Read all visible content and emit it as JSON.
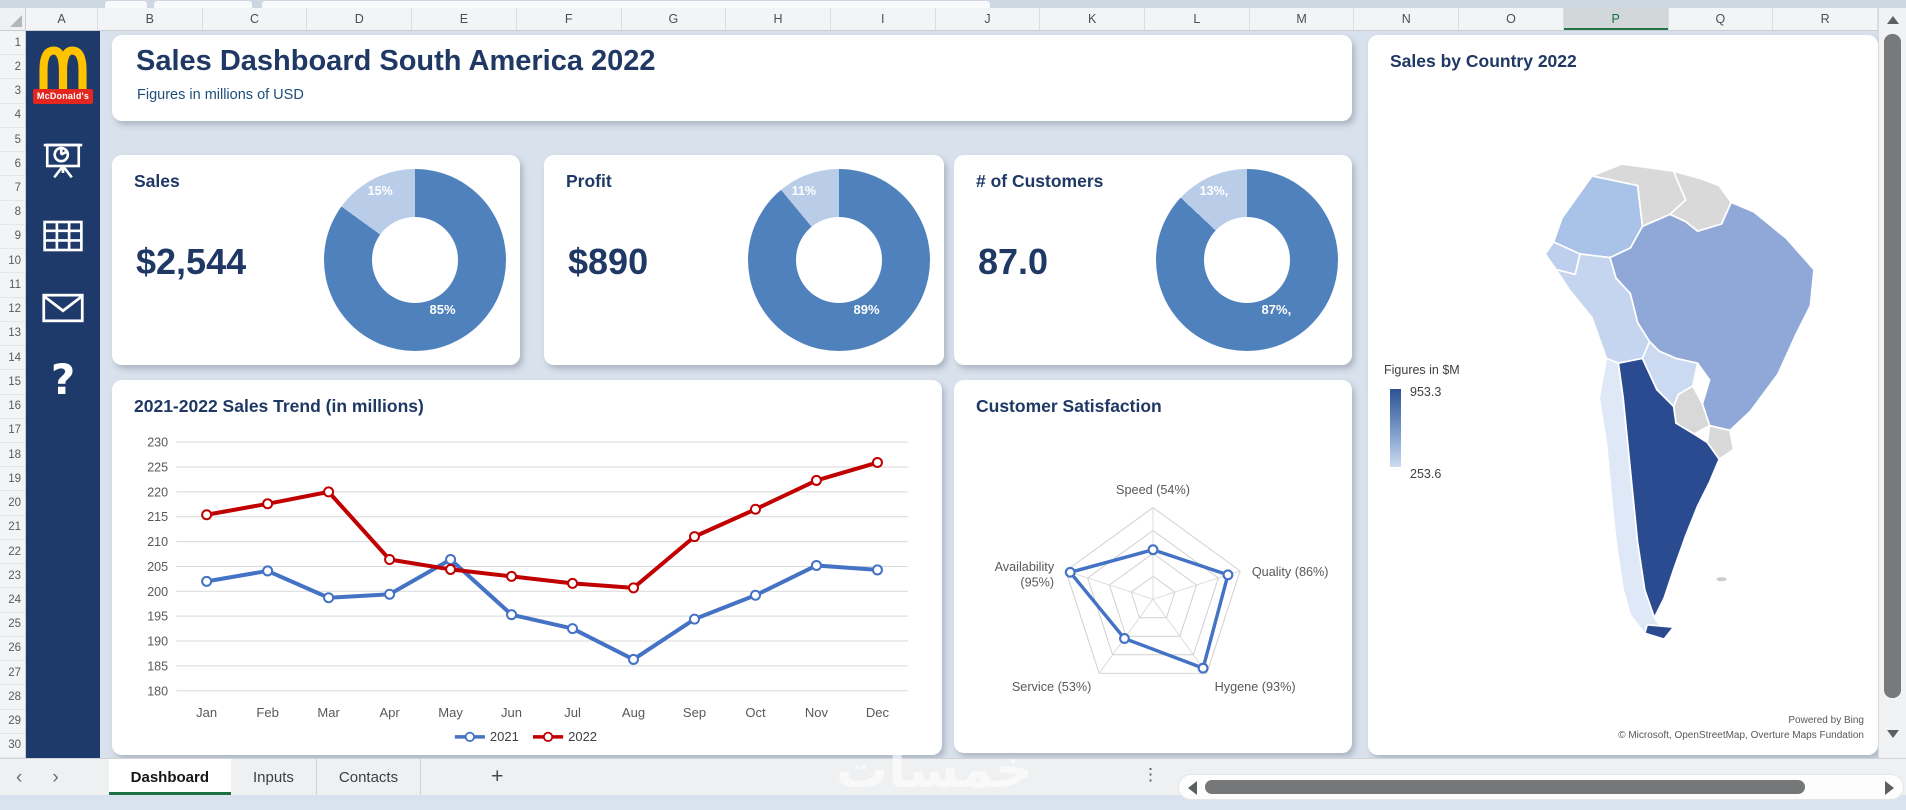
{
  "header": {
    "title": "Sales Dashboard South America 2022",
    "subtitle": "Figures in millions of USD"
  },
  "sidebar": {
    "logo_label": "McDonald's",
    "icons": [
      "presentation-chart-icon",
      "table-icon",
      "mail-icon",
      "help-question-icon"
    ]
  },
  "grid": {
    "columns": [
      "A",
      "B",
      "C",
      "D",
      "E",
      "F",
      "G",
      "H",
      "I",
      "J",
      "K",
      "L",
      "M",
      "N",
      "O",
      "P",
      "Q",
      "R"
    ],
    "selected_column": "P",
    "row_count": 30
  },
  "kpis": [
    {
      "title": "Sales",
      "value": "$2,544"
    },
    {
      "title": "Profit",
      "value": "$890"
    },
    {
      "title": "# of Customers",
      "value": "87.0"
    }
  ],
  "chart_data": [
    {
      "id": "sales_donut",
      "type": "pie",
      "variant": "donut",
      "title": "Sales",
      "slices": [
        {
          "label": "85%",
          "value": 85
        },
        {
          "label": "15%",
          "value": 15
        }
      ]
    },
    {
      "id": "profit_donut",
      "type": "pie",
      "variant": "donut",
      "title": "Profit",
      "slices": [
        {
          "label": "89%",
          "value": 89
        },
        {
          "label": "11%",
          "value": 11
        }
      ]
    },
    {
      "id": "customers_donut",
      "type": "pie",
      "variant": "donut",
      "title": "# of Customers",
      "slices": [
        {
          "label": "87%,",
          "value": 87
        },
        {
          "label": "13%,",
          "value": 13
        }
      ]
    },
    {
      "id": "trend",
      "type": "line",
      "title": "2021-2022 Sales Trend (in millions)",
      "categories": [
        "Jan",
        "Feb",
        "Mar",
        "Apr",
        "May",
        "Jun",
        "Jul",
        "Aug",
        "Sep",
        "Oct",
        "Nov",
        "Dec"
      ],
      "series": [
        {
          "name": "2021",
          "color": "#4472c4",
          "values": [
            202.0,
            204.1,
            198.7,
            199.4,
            206.4,
            195.3,
            192.5,
            186.3,
            194.4,
            199.2,
            205.2,
            204.3
          ]
        },
        {
          "name": "2022",
          "color": "#c00000",
          "values": [
            215.4,
            217.6,
            220.0,
            206.4,
            204.4,
            203.0,
            201.6,
            200.7,
            211.0,
            216.5,
            222.3,
            225.9
          ]
        }
      ],
      "ylim": [
        180,
        230
      ],
      "ytick_step": 5,
      "grid": true,
      "legend_position": "bottom"
    },
    {
      "id": "satisfaction",
      "type": "radar",
      "title": "Customer Satisfaction",
      "categories": [
        "Speed",
        "Quality",
        "Hygene",
        "Service",
        "Availability"
      ],
      "values": [
        54,
        86,
        93,
        53,
        95
      ],
      "label_lines": [
        [
          "Speed (54%)"
        ],
        [
          "Quality (86%)"
        ],
        [
          "Hygene (93%)"
        ],
        [
          "Service (53%)"
        ],
        [
          "Availability",
          "(95%)"
        ]
      ],
      "rmax": 100,
      "rings": [
        25,
        50,
        75,
        100
      ],
      "line_color": "#4472c4"
    },
    {
      "id": "sales_map",
      "type": "map",
      "title": "Sales by Country 2022",
      "legend": {
        "title": "Figures in $M",
        "max": 953.3,
        "min": 253.6
      },
      "countries_shading": {
        "Argentina": "darkest (highest sales)",
        "Brazil": "medium blue",
        "Colombia": "medium-light blue",
        "Peru": "light blue",
        "Ecuador": "light blue",
        "Bolivia": "very light blue",
        "Chile": "palest blue",
        "Venezuela": "gray (no data)",
        "Guyanas": "gray (no data)",
        "Paraguay": "gray (no data)",
        "Uruguay": "gray (no data)"
      }
    }
  ],
  "map": {
    "title": "Sales by Country 2022",
    "legend_title": "Figures in $M",
    "legend_max": "953.3",
    "legend_min": "253.6",
    "attribution_line1": "Powered by Bing",
    "attribution_line2": "© Microsoft, OpenStreetMap, Overture Maps Fundation",
    "country_fills": {
      "colombia": "#a9c2e8",
      "venezuela": "#d9d9d9",
      "guyanas": "#d9d9d9",
      "ecuador": "#bdcfec",
      "peru": "#c6d5ef",
      "brazil": "#90a8d8",
      "bolivia": "#cbd9f1",
      "paraguay": "#d8d8d8",
      "uruguay": "#d9d9d9",
      "chile": "#dfe8f6",
      "argentina": "#2a4b8f",
      "falklands": "#cccccc"
    }
  },
  "tabs": {
    "items": [
      {
        "label": "Dashboard",
        "active": true
      },
      {
        "label": "Inputs",
        "active": false
      },
      {
        "label": "Contacts",
        "active": false
      }
    ],
    "add_label": "+"
  },
  "watermark": "خمسات",
  "colors": {
    "accent_navy": "#1f3864",
    "sidebar_navy": "#1d3a6b",
    "donut_dark": "#4f81bd",
    "donut_light": "#b9cde8",
    "series_2021": "#4472c4",
    "series_2022": "#c00000",
    "tab_active_green": "#1e7145",
    "gridline": "#d9d9d9"
  }
}
